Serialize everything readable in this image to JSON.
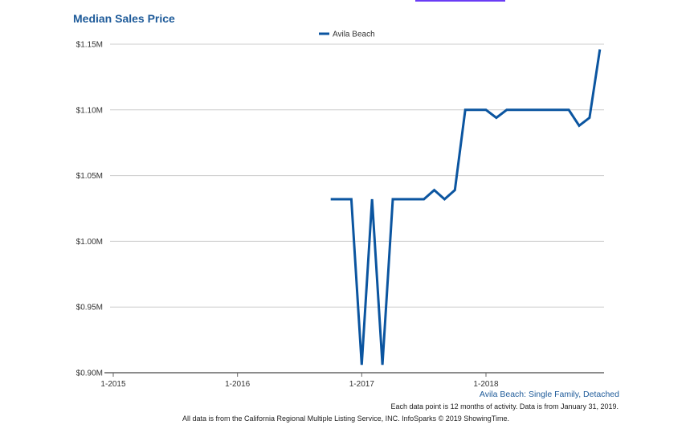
{
  "chart_data": {
    "type": "line",
    "title": "Median Sales Price",
    "xlabel": "",
    "ylabel": "",
    "legend": {
      "position": "top-center",
      "entries": [
        "Avila Beach"
      ]
    },
    "grid": true,
    "ylim": [
      0.9,
      1.15
    ],
    "y_ticks": [
      {
        "value": 0.9,
        "label": "$0.90M"
      },
      {
        "value": 0.95,
        "label": "$0.95M"
      },
      {
        "value": 1.0,
        "label": "$1.00M"
      },
      {
        "value": 1.05,
        "label": "$1.05M"
      },
      {
        "value": 1.1,
        "label": "$1.10M"
      },
      {
        "value": 1.15,
        "label": "$1.15M"
      }
    ],
    "x_ticks": [
      {
        "month_index": 0,
        "label": "1-2015"
      },
      {
        "month_index": 12,
        "label": "1-2016"
      },
      {
        "month_index": 24,
        "label": "1-2017"
      },
      {
        "month_index": 36,
        "label": "1-2018"
      }
    ],
    "xlim_month_index": [
      0,
      48
    ],
    "series": [
      {
        "name": "Avila Beach",
        "color": "#0b55a0",
        "start_month_index": 21,
        "values": [
          1.032,
          1.032,
          1.032,
          0.906,
          1.032,
          0.906,
          1.032,
          1.032,
          1.032,
          1.032,
          1.039,
          1.032,
          1.039,
          1.1,
          1.1,
          1.1,
          1.094,
          1.1,
          1.1,
          1.1,
          1.1,
          1.1,
          1.1,
          1.1,
          1.088,
          1.094,
          1.146
        ]
      }
    ]
  },
  "subtitle": "Avila Beach: Single Family, Detached",
  "note": "Each data point is 12 months of activity. Data is from January 31, 2019.",
  "source": "All data is from the California Regional Multiple Listing Service, INC. InfoSparks © 2019 ShowingTime.",
  "colors": {
    "title": "#1d5a99",
    "line": "#0b55a0",
    "topbar": "#6a3cf5"
  }
}
